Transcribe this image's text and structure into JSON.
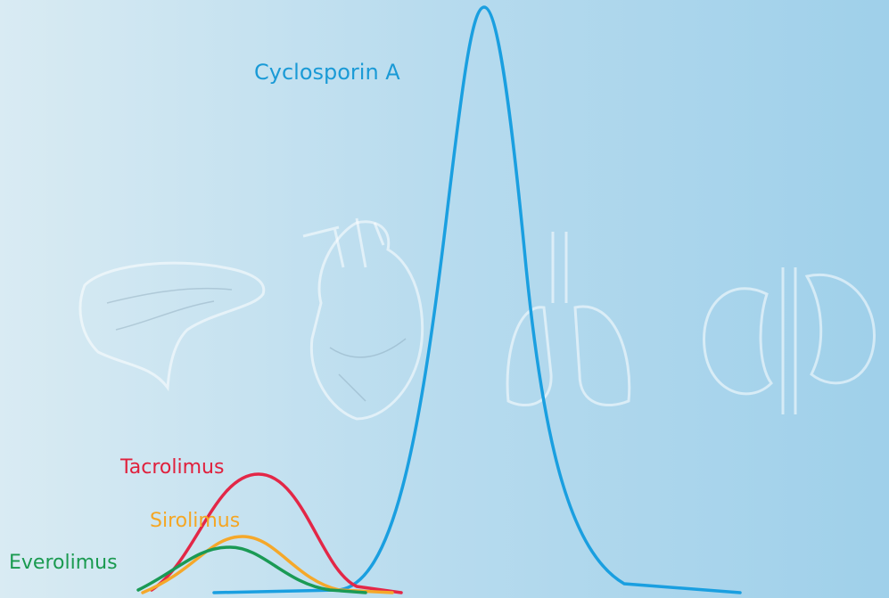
{
  "labels": {
    "cyclosporin": "Cyclosporin A",
    "tacrolimus": "Tacrolimus",
    "sirolimus": "Sirolimus",
    "everolimus": "Everolimus"
  }
}
